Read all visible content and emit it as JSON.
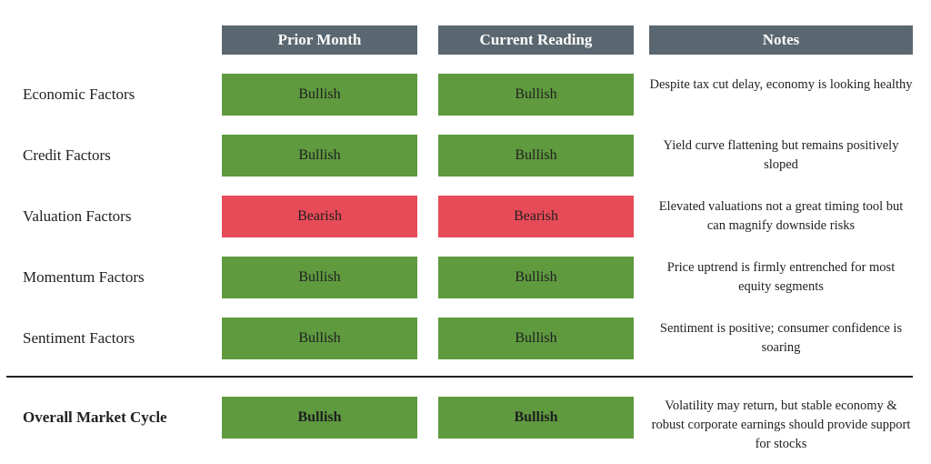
{
  "headers": {
    "prior_month": "Prior Month",
    "current_reading": "Current Reading",
    "notes": "Notes"
  },
  "colors": {
    "header_bg": "#5a6770",
    "bullish": "#5f9a3f",
    "bearish": "#e84b58"
  },
  "rows": [
    {
      "label": "Economic Factors",
      "prior": "Bullish",
      "current": "Bullish",
      "note": "Despite tax cut delay, economy is looking healthy"
    },
    {
      "label": "Credit Factors",
      "prior": "Bullish",
      "current": "Bullish",
      "note": "Yield curve flattening but remains positively sloped"
    },
    {
      "label": "Valuation Factors",
      "prior": "Bearish",
      "current": "Bearish",
      "note": "Elevated valuations not a great timing tool but can magnify downside risks"
    },
    {
      "label": "Momentum Factors",
      "prior": "Bullish",
      "current": "Bullish",
      "note": "Price uptrend is firmly entrenched for most equity segments"
    },
    {
      "label": "Sentiment Factors",
      "prior": "Bullish",
      "current": "Bullish",
      "note": "Sentiment is positive; consumer confidence is soaring"
    }
  ],
  "overall": {
    "label": "Overall Market Cycle",
    "prior": "Bullish",
    "current": "Bullish",
    "note": "Volatility may return, but stable economy & robust corporate earnings should provide support for stocks"
  }
}
